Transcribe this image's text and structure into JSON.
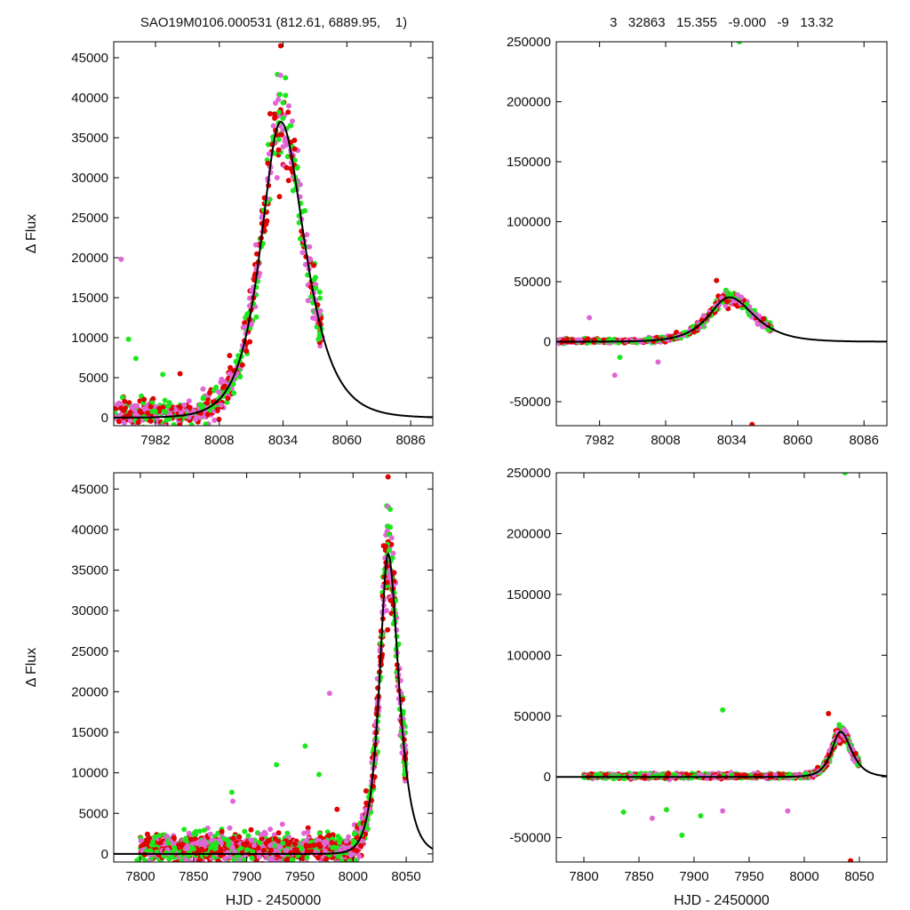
{
  "header": {
    "left_title": "SAO19M0106.000531 (812.61, 6889.95,    1)",
    "right_title": "3   32863   15.355   -9.000   -9   13.32"
  },
  "colors": {
    "red": "#e00000",
    "green": "#1ee61e",
    "magenta": "#e066d6",
    "model": "#000000"
  },
  "chart_data": [
    {
      "type": "scatter",
      "ylabel": "Δ Flux",
      "xlabel": "",
      "xlim": [
        7965,
        8095
      ],
      "ylim": [
        -1000,
        47000
      ],
      "xticks": [
        7982,
        8008,
        8034,
        8060,
        8086
      ],
      "yticks": [
        0,
        5000,
        10000,
        15000,
        20000,
        25000,
        30000,
        35000,
        40000,
        45000
      ],
      "model": {
        "t0": 8033,
        "peak": 37000,
        "rise_tau": 7.2,
        "decay_tau": 8.8
      },
      "outliers": [
        {
          "x": 7968,
          "y": 19800,
          "c": "magenta"
        },
        {
          "x": 7971,
          "y": 9800,
          "c": "green"
        },
        {
          "x": 7974,
          "y": 7400,
          "c": "green"
        },
        {
          "x": 7985,
          "y": 5400,
          "c": "green"
        },
        {
          "x": 7992,
          "y": 5500,
          "c": "red"
        },
        {
          "x": 8033,
          "y": 46500,
          "c": "red"
        },
        {
          "x": 8033,
          "y": 42800,
          "c": "magenta"
        },
        {
          "x": 8035,
          "y": 42500,
          "c": "green"
        }
      ]
    },
    {
      "type": "scatter",
      "ylabel": "",
      "xlabel": "",
      "xlim": [
        7965,
        8095
      ],
      "ylim": [
        -70000,
        250000
      ],
      "xticks": [
        7982,
        8008,
        8034,
        8060,
        8086
      ],
      "yticks": [
        -50000,
        0,
        50000,
        100000,
        150000,
        200000,
        250000
      ],
      "model": {
        "t0": 8033,
        "peak": 37000,
        "rise_tau": 7.2,
        "decay_tau": 8.8
      },
      "outliers": [
        {
          "x": 8037,
          "y": 250000,
          "c": "green"
        },
        {
          "x": 8042,
          "y": -69000,
          "c": "red"
        },
        {
          "x": 7978,
          "y": 20000,
          "c": "magenta"
        },
        {
          "x": 7988,
          "y": -28000,
          "c": "magenta"
        },
        {
          "x": 8005,
          "y": -17000,
          "c": "magenta"
        },
        {
          "x": 8028,
          "y": 51000,
          "c": "red"
        },
        {
          "x": 7990,
          "y": -13000,
          "c": "green"
        }
      ]
    },
    {
      "type": "scatter",
      "ylabel": "Δ Flux",
      "xlabel": "HJD - 2450000",
      "xlim": [
        7775,
        8075
      ],
      "ylim": [
        -1000,
        47000
      ],
      "xticks": [
        7800,
        7850,
        7900,
        7950,
        8000,
        8050
      ],
      "yticks": [
        0,
        5000,
        10000,
        15000,
        20000,
        25000,
        30000,
        35000,
        40000,
        45000
      ],
      "model": {
        "t0": 8033,
        "peak": 37000,
        "rise_tau": 7.2,
        "decay_tau": 8.8
      },
      "outliers": [
        {
          "x": 7797,
          "y": -800,
          "c": "green"
        },
        {
          "x": 7886,
          "y": 7600,
          "c": "green"
        },
        {
          "x": 7887,
          "y": 6500,
          "c": "magenta"
        },
        {
          "x": 7928,
          "y": 11000,
          "c": "green"
        },
        {
          "x": 7955,
          "y": 13300,
          "c": "green"
        },
        {
          "x": 7968,
          "y": 9800,
          "c": "green"
        },
        {
          "x": 7978,
          "y": 19800,
          "c": "magenta"
        },
        {
          "x": 7985,
          "y": 5500,
          "c": "red"
        },
        {
          "x": 8033,
          "y": 46500,
          "c": "red"
        },
        {
          "x": 8033,
          "y": 42800,
          "c": "magenta"
        },
        {
          "x": 8035,
          "y": 42500,
          "c": "green"
        }
      ]
    },
    {
      "type": "scatter",
      "ylabel": "",
      "xlabel": "HJD - 2450000",
      "xlim": [
        7775,
        8075
      ],
      "ylim": [
        -70000,
        250000
      ],
      "xticks": [
        7800,
        7850,
        7900,
        7950,
        8000,
        8050
      ],
      "yticks": [
        -50000,
        0,
        50000,
        100000,
        150000,
        200000,
        250000
      ],
      "model": {
        "t0": 8033,
        "peak": 37000,
        "rise_tau": 7.2,
        "decay_tau": 8.8
      },
      "outliers": [
        {
          "x": 8037,
          "y": 250000,
          "c": "green"
        },
        {
          "x": 8042,
          "y": -69000,
          "c": "red"
        },
        {
          "x": 7926,
          "y": 55000,
          "c": "green"
        },
        {
          "x": 7889,
          "y": -48000,
          "c": "green"
        },
        {
          "x": 7836,
          "y": -29000,
          "c": "green"
        },
        {
          "x": 7862,
          "y": -34000,
          "c": "magenta"
        },
        {
          "x": 7875,
          "y": -27000,
          "c": "green"
        },
        {
          "x": 7906,
          "y": -32000,
          "c": "green"
        },
        {
          "x": 7926,
          "y": -28000,
          "c": "magenta"
        },
        {
          "x": 7985,
          "y": -28000,
          "c": "magenta"
        },
        {
          "x": 8022,
          "y": 52000,
          "c": "red"
        }
      ]
    }
  ]
}
